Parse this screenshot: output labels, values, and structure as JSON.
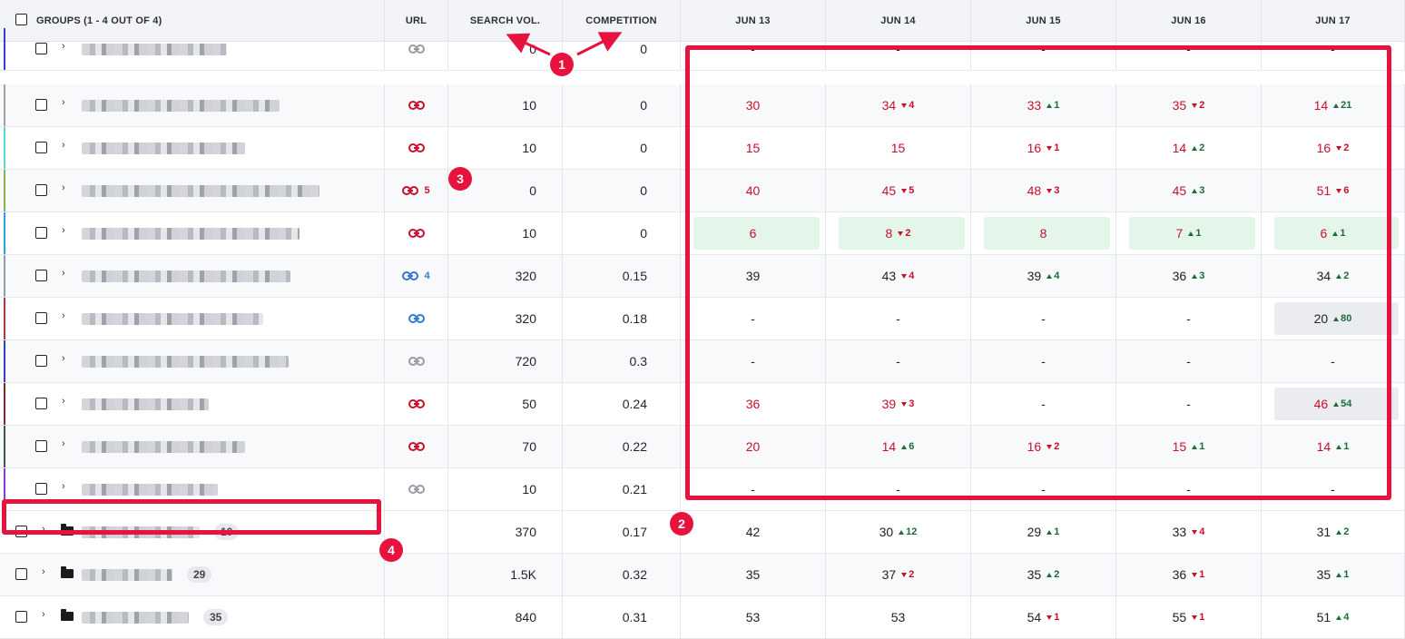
{
  "header": {
    "groups_label": "GROUPS (1 - 4 OUT OF 4)",
    "url": "URL",
    "search_vol": "SEARCH VOL.",
    "competition": "COMPETITION",
    "dates": [
      "JUN 13",
      "JUN 14",
      "JUN 15",
      "JUN 16",
      "JUN 17"
    ]
  },
  "rows": [
    {
      "accent": "#3b3fd8",
      "blur": 160,
      "link": "gray",
      "link_count": "",
      "sv": "0",
      "comp": "0",
      "cells": [
        {
          "v": "-"
        },
        {
          "v": "-"
        },
        {
          "v": "-"
        },
        {
          "v": "-"
        },
        {
          "v": "-"
        }
      ]
    },
    {
      "accent": "#a0a0a0",
      "blur": 218,
      "link": "red",
      "link_count": "",
      "sv": "10",
      "comp": "0",
      "cells": [
        {
          "v": "30",
          "c": "red"
        },
        {
          "v": "34",
          "c": "red",
          "d": "4",
          "dir": "dn"
        },
        {
          "v": "33",
          "c": "red",
          "d": "1",
          "dir": "up"
        },
        {
          "v": "35",
          "c": "red",
          "d": "2",
          "dir": "dn"
        },
        {
          "v": "14",
          "c": "red",
          "d": "21",
          "dir": "up"
        }
      ]
    },
    {
      "accent": "#5ed6d0",
      "blur": 180,
      "link": "red",
      "link_count": "",
      "sv": "10",
      "comp": "0",
      "cells": [
        {
          "v": "15",
          "c": "red"
        },
        {
          "v": "15",
          "c": "red"
        },
        {
          "v": "16",
          "c": "red",
          "d": "1",
          "dir": "dn"
        },
        {
          "v": "14",
          "c": "red",
          "d": "2",
          "dir": "up"
        },
        {
          "v": "16",
          "c": "red",
          "d": "2",
          "dir": "dn"
        }
      ]
    },
    {
      "accent": "#8bb24a",
      "blur": 262,
      "link": "red",
      "link_count": "5",
      "sv": "0",
      "comp": "0",
      "cells": [
        {
          "v": "40",
          "c": "red"
        },
        {
          "v": "45",
          "c": "red",
          "d": "5",
          "dir": "dn"
        },
        {
          "v": "48",
          "c": "red",
          "d": "3",
          "dir": "dn"
        },
        {
          "v": "45",
          "c": "red",
          "d": "3",
          "dir": "up"
        },
        {
          "v": "51",
          "c": "red",
          "d": "6",
          "dir": "dn"
        }
      ]
    },
    {
      "accent": "#2aa3d8",
      "blur": 240,
      "link": "red",
      "link_count": "",
      "sv": "10",
      "comp": "0",
      "pill": "green",
      "cells": [
        {
          "v": "6",
          "c": "red",
          "p": "green"
        },
        {
          "v": "8",
          "c": "red",
          "d": "2",
          "dir": "dn",
          "p": "green"
        },
        {
          "v": "8",
          "c": "red",
          "p": "green"
        },
        {
          "v": "7",
          "c": "red",
          "d": "1",
          "dir": "up",
          "p": "green"
        },
        {
          "v": "6",
          "c": "red",
          "d": "1",
          "dir": "up",
          "p": "green"
        }
      ]
    },
    {
      "accent": "#8fa3a3",
      "blur": 230,
      "link": "blue",
      "link_count": "4",
      "sv": "320",
      "comp": "0.15",
      "cells": [
        {
          "v": "39"
        },
        {
          "v": "43",
          "d": "4",
          "dir": "dn"
        },
        {
          "v": "39",
          "d": "4",
          "dir": "up"
        },
        {
          "v": "36",
          "d": "3",
          "dir": "up"
        },
        {
          "v": "34",
          "d": "2",
          "dir": "up"
        }
      ]
    },
    {
      "accent": "#a33a3a",
      "blur": 200,
      "link": "blue",
      "link_count": "",
      "sv": "320",
      "comp": "0.18",
      "cells": [
        {
          "v": "-"
        },
        {
          "v": "-"
        },
        {
          "v": "-"
        },
        {
          "v": "-"
        },
        {
          "v": "20",
          "d": "80",
          "dir": "up",
          "p": "gray"
        }
      ]
    },
    {
      "accent": "#3a3fc0",
      "blur": 228,
      "link": "gray",
      "link_count": "",
      "sv": "720",
      "comp": "0.3",
      "cells": [
        {
          "v": "-"
        },
        {
          "v": "-"
        },
        {
          "v": "-"
        },
        {
          "v": "-"
        },
        {
          "v": "-"
        }
      ]
    },
    {
      "accent": "#7a2a3a",
      "blur": 140,
      "link": "red",
      "link_count": "",
      "sv": "50",
      "comp": "0.24",
      "cells": [
        {
          "v": "36",
          "c": "red"
        },
        {
          "v": "39",
          "c": "red",
          "d": "3",
          "dir": "dn"
        },
        {
          "v": "-"
        },
        {
          "v": "-"
        },
        {
          "v": "46",
          "c": "red",
          "d": "54",
          "dir": "up",
          "p": "gray"
        }
      ]
    },
    {
      "accent": "#3a5a4a",
      "blur": 180,
      "link": "red",
      "link_count": "",
      "sv": "70",
      "comp": "0.22",
      "cells": [
        {
          "v": "20",
          "c": "red"
        },
        {
          "v": "14",
          "c": "red",
          "d": "6",
          "dir": "up"
        },
        {
          "v": "16",
          "c": "red",
          "d": "2",
          "dir": "dn"
        },
        {
          "v": "15",
          "c": "red",
          "d": "1",
          "dir": "up"
        },
        {
          "v": "14",
          "c": "red",
          "d": "1",
          "dir": "up"
        }
      ]
    },
    {
      "accent": "#8a3ad8",
      "blur": 150,
      "link": "gray",
      "link_count": "",
      "sv": "10",
      "comp": "0.21",
      "cells": [
        {
          "v": "-"
        },
        {
          "v": "-"
        },
        {
          "v": "-"
        },
        {
          "v": "-"
        },
        {
          "v": "-"
        }
      ]
    }
  ],
  "groups": [
    {
      "blur": 130,
      "badge": "10",
      "sv": "370",
      "comp": "0.17",
      "cells": [
        {
          "v": "42"
        },
        {
          "v": "30",
          "d": "12",
          "dir": "up"
        },
        {
          "v": "29",
          "d": "1",
          "dir": "up"
        },
        {
          "v": "33",
          "d": "4",
          "dir": "dn"
        },
        {
          "v": "31",
          "d": "2",
          "dir": "up"
        }
      ]
    },
    {
      "blur": 100,
      "badge": "29",
      "sv": "1.5K",
      "comp": "0.32",
      "cells": [
        {
          "v": "35"
        },
        {
          "v": "37",
          "d": "2",
          "dir": "dn"
        },
        {
          "v": "35",
          "d": "2",
          "dir": "up"
        },
        {
          "v": "36",
          "d": "1",
          "dir": "dn"
        },
        {
          "v": "35",
          "d": "1",
          "dir": "up"
        }
      ]
    },
    {
      "blur": 118,
      "badge": "35",
      "sv": "840",
      "comp": "0.31",
      "cells": [
        {
          "v": "53"
        },
        {
          "v": "53"
        },
        {
          "v": "54",
          "d": "1",
          "dir": "dn"
        },
        {
          "v": "55",
          "d": "1",
          "dir": "dn"
        },
        {
          "v": "51",
          "d": "4",
          "dir": "up"
        }
      ]
    }
  ],
  "markers": [
    "1",
    "2",
    "3",
    "4"
  ],
  "colors": {
    "accent_red": "#c8102e",
    "positive_green": "#1c6b3c",
    "link_blue": "#2f7ad6",
    "link_gray": "#9a9ca3",
    "annotation": "#e8123f"
  }
}
